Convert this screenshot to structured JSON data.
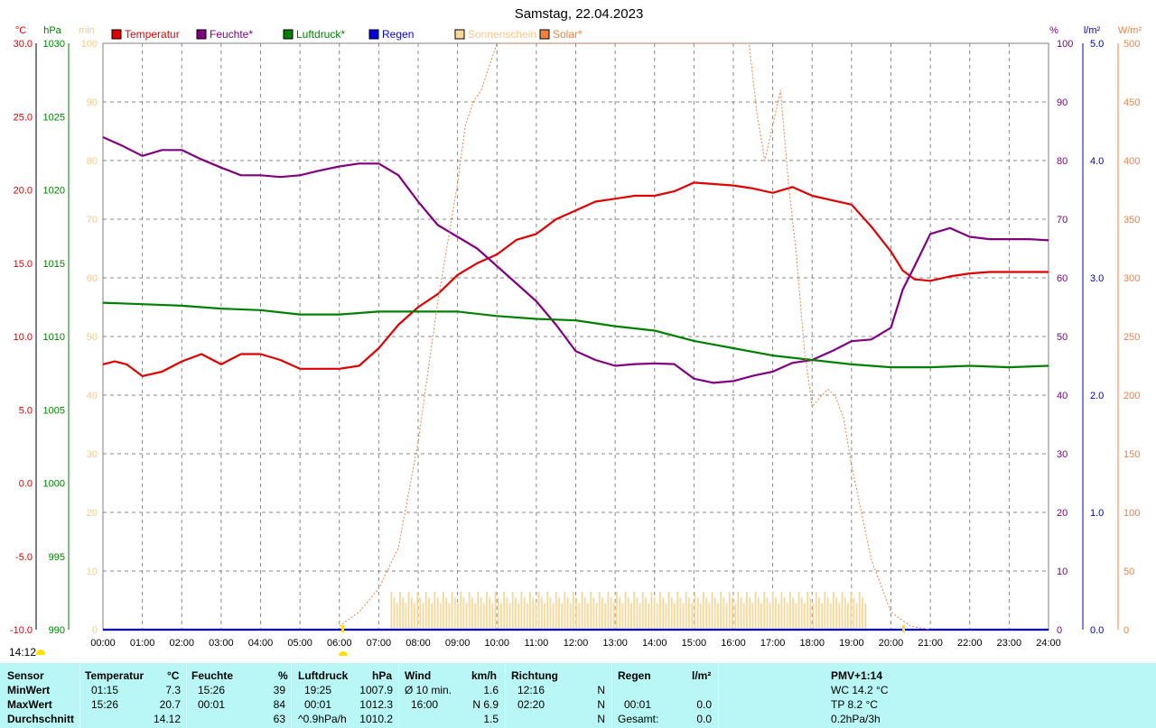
{
  "title": "Samstag, 22.04.2023",
  "clock": "14:12",
  "unit_labels": {
    "temp": "°C",
    "press": "hPa",
    "sun": "min",
    "hum": "%",
    "rain": "l/m²",
    "solar": "W/m²"
  },
  "colors": {
    "temp": "#e00000",
    "hum": "#800080",
    "press": "#008000",
    "rain": "#0000e0",
    "sun": "#f8d898",
    "solar": "#f08040"
  },
  "chart_data": {
    "type": "line",
    "title": "Samstag, 22.04.2023",
    "grid": true,
    "legend_position": "top",
    "legend": [
      {
        "key": "temp",
        "label": "Temperatur"
      },
      {
        "key": "hum",
        "label": "Feuchte*"
      },
      {
        "key": "press",
        "label": "Luftdruck*"
      },
      {
        "key": "rain",
        "label": "Regen"
      },
      {
        "key": "sun",
        "label": "Sonnenschein"
      },
      {
        "key": "solar",
        "label": "Solar*"
      }
    ],
    "x_ticks": [
      "00:00",
      "01:00",
      "02:00",
      "03:00",
      "04:00",
      "05:00",
      "06:00",
      "07:00",
      "08:00",
      "09:00",
      "10:00",
      "11:00",
      "12:00",
      "13:00",
      "14:00",
      "15:00",
      "16:00",
      "17:00",
      "18:00",
      "19:00",
      "20:00",
      "21:00",
      "22:00",
      "23:00",
      "24:00"
    ],
    "axes": {
      "temp": {
        "ticks": [
          "30.0",
          "25.0",
          "20.0",
          "15.0",
          "10.0",
          "5.0",
          "0.0",
          "-5.0",
          "-10.0"
        ],
        "range": [
          -10,
          30
        ]
      },
      "press": {
        "ticks": [
          "1030",
          "1025",
          "1020",
          "1015",
          "1010",
          "1005",
          "1000",
          "995",
          "990"
        ],
        "range": [
          990,
          1030
        ]
      },
      "sun": {
        "ticks": [
          "100",
          "90",
          "80",
          "70",
          "60",
          "50",
          "40",
          "30",
          "20",
          "10",
          "0"
        ],
        "range": [
          0,
          100
        ]
      },
      "hum": {
        "ticks": [
          "100",
          "90",
          "80",
          "70",
          "60",
          "50",
          "40",
          "30",
          "20",
          "10",
          "0"
        ],
        "range": [
          0,
          100
        ]
      },
      "rain": {
        "ticks": [
          "5.0",
          "4.0",
          "3.0",
          "2.0",
          "1.0",
          "0.0"
        ],
        "range": [
          0,
          5
        ]
      },
      "solar": {
        "ticks": [
          "500",
          "450",
          "400",
          "350",
          "300",
          "250",
          "200",
          "150",
          "100",
          "50",
          "0"
        ],
        "range": [
          0,
          500
        ]
      }
    },
    "series": [
      {
        "name": "Temperatur",
        "key": "temp",
        "axis": "temp",
        "x_hours": [
          0,
          0.3,
          0.6,
          1,
          1.5,
          2,
          2.5,
          3,
          3.5,
          4,
          4.5,
          5,
          5.5,
          6,
          6.5,
          7,
          7.5,
          8,
          8.5,
          9,
          9.5,
          10,
          10.5,
          11,
          11.5,
          12,
          12.5,
          13,
          13.5,
          14,
          14.5,
          15,
          15.5,
          16,
          16.5,
          17,
          17.5,
          18,
          18.5,
          19,
          19.5,
          20,
          20.3,
          20.6,
          21,
          21.5,
          22,
          22.5,
          23,
          23.5,
          24
        ],
        "values": [
          8.1,
          8.3,
          8.1,
          7.3,
          7.6,
          8.3,
          8.8,
          8.1,
          8.8,
          8.8,
          8.4,
          7.8,
          7.8,
          7.8,
          8.0,
          9.2,
          10.8,
          12.0,
          12.9,
          14.2,
          15.0,
          15.6,
          16.6,
          17.0,
          18.0,
          18.6,
          19.2,
          19.4,
          19.6,
          19.6,
          19.9,
          20.5,
          20.4,
          20.3,
          20.1,
          19.8,
          20.2,
          19.6,
          19.3,
          19.0,
          17.5,
          15.8,
          14.5,
          13.9,
          13.8,
          14.1,
          14.3,
          14.4,
          14.4,
          14.4,
          14.4
        ]
      },
      {
        "name": "Feuchte*",
        "key": "hum",
        "axis": "hum",
        "x_hours": [
          0,
          0.5,
          1,
          1.5,
          2,
          2.5,
          3,
          3.5,
          4,
          4.5,
          5,
          5.5,
          6,
          6.5,
          7,
          7.5,
          8,
          8.5,
          9,
          9.5,
          10,
          10.5,
          11,
          11.5,
          12,
          12.5,
          13,
          13.5,
          14,
          14.5,
          15,
          15.5,
          16,
          16.5,
          17,
          17.5,
          18,
          18.5,
          19,
          19.5,
          20,
          20.3,
          20.6,
          21,
          21.5,
          22,
          22.5,
          23,
          23.5,
          24
        ],
        "values": [
          84,
          82.5,
          80.8,
          81.8,
          81.8,
          80.2,
          78.8,
          77.5,
          77.5,
          77.2,
          77.5,
          78.3,
          79,
          79.5,
          79.5,
          77.5,
          73,
          69,
          67,
          65,
          62,
          59,
          56,
          52,
          47.5,
          46,
          45,
          45.3,
          45.4,
          45.3,
          42.8,
          42.1,
          42.4,
          43.3,
          44,
          45.5,
          46,
          47.5,
          49.2,
          49.5,
          51.5,
          58,
          62,
          67.5,
          68.5,
          67,
          66.6,
          66.6,
          66.6,
          66.4
        ]
      },
      {
        "name": "Luftdruck*",
        "key": "press",
        "axis": "press",
        "x_hours": [
          0,
          1,
          2,
          3,
          4,
          5,
          6,
          7,
          8,
          9,
          10,
          11,
          12,
          13,
          14,
          15,
          16,
          17,
          18,
          19,
          20,
          21,
          22,
          23,
          24
        ],
        "values": [
          1012.3,
          1012.2,
          1012.1,
          1011.9,
          1011.8,
          1011.5,
          1011.5,
          1011.7,
          1011.7,
          1011.7,
          1011.4,
          1011.2,
          1011.1,
          1010.7,
          1010.4,
          1009.7,
          1009.2,
          1008.7,
          1008.4,
          1008.1,
          1007.9,
          1007.9,
          1008.0,
          1007.9,
          1008.0
        ]
      },
      {
        "name": "Regen",
        "key": "rain",
        "axis": "rain",
        "x_hours": [
          0,
          24
        ],
        "values": [
          0,
          0
        ]
      },
      {
        "name": "Solar*",
        "key": "solar",
        "axis": "solar",
        "x_hours": [
          6,
          6.5,
          7,
          7.5,
          8,
          8.5,
          9,
          9.2,
          9.4,
          9.6,
          9.8,
          10,
          10.2,
          10.4,
          10.6,
          10.8,
          16,
          16.2,
          16.4,
          16.6,
          16.8,
          17,
          17.2,
          17.4,
          17.6,
          17.8,
          18,
          18.2,
          18.4,
          18.6,
          18.8,
          19,
          19.5,
          20,
          20.5,
          21
        ],
        "values": [
          3,
          15,
          35,
          70,
          160,
          280,
          380,
          430,
          450,
          460,
          480,
          530,
          560,
          580,
          600,
          650,
          650,
          580,
          510,
          440,
          400,
          430,
          460,
          380,
          320,
          240,
          190,
          198,
          205,
          198,
          180,
          140,
          60,
          15,
          3,
          0
        ]
      }
    ],
    "sunshine_minutes_bars": {
      "x_start_hours": 7.3,
      "x_end_hours": 19.35,
      "approx_minutes": [
        6.5,
        5.5,
        4.5
      ]
    }
  },
  "stats": {
    "sensor": {
      "header": "Sensor",
      "rows": [
        "MinWert",
        "MaxWert",
        "Durchschnitt"
      ]
    },
    "temperature": {
      "header": "Temperatur",
      "unit": "°C",
      "rows": [
        [
          "01:15",
          "7.3"
        ],
        [
          "15:26",
          "20.7"
        ],
        [
          "",
          "14.12"
        ]
      ]
    },
    "humidity": {
      "header": "Feuchte",
      "unit": "%",
      "rows": [
        [
          "15:26",
          "39"
        ],
        [
          "00:01",
          "84"
        ],
        [
          "",
          "63"
        ]
      ]
    },
    "pressure": {
      "header": "Luftdruck",
      "unit": "hPa",
      "rows": [
        [
          "19:25",
          "1007.9"
        ],
        [
          "00:01",
          "1012.3"
        ],
        [
          "^0.9hPa/h",
          "1010.2"
        ]
      ]
    },
    "wind": {
      "header": "Wind",
      "unit": "km/h",
      "rows": [
        [
          "Ø 10 min.",
          "1.6"
        ],
        [
          "16:00",
          "N 6.9"
        ],
        [
          "",
          "1.5"
        ]
      ]
    },
    "direction": {
      "header": "Richtung",
      "rows": [
        [
          "12:16",
          "N"
        ],
        [
          "02:20",
          "N"
        ],
        [
          "",
          "N"
        ]
      ]
    },
    "rain": {
      "header": "Regen",
      "unit": "l/m²",
      "rows": [
        [
          "",
          ""
        ],
        [
          "00:01",
          "0.0"
        ],
        [
          "Gesamt:",
          "0.0"
        ]
      ]
    },
    "pmv": {
      "header": "PMV+1:14",
      "rows": [
        "WC 14.2 °C",
        "TP 8.2 °C",
        "0.2hPa/3h"
      ]
    }
  }
}
